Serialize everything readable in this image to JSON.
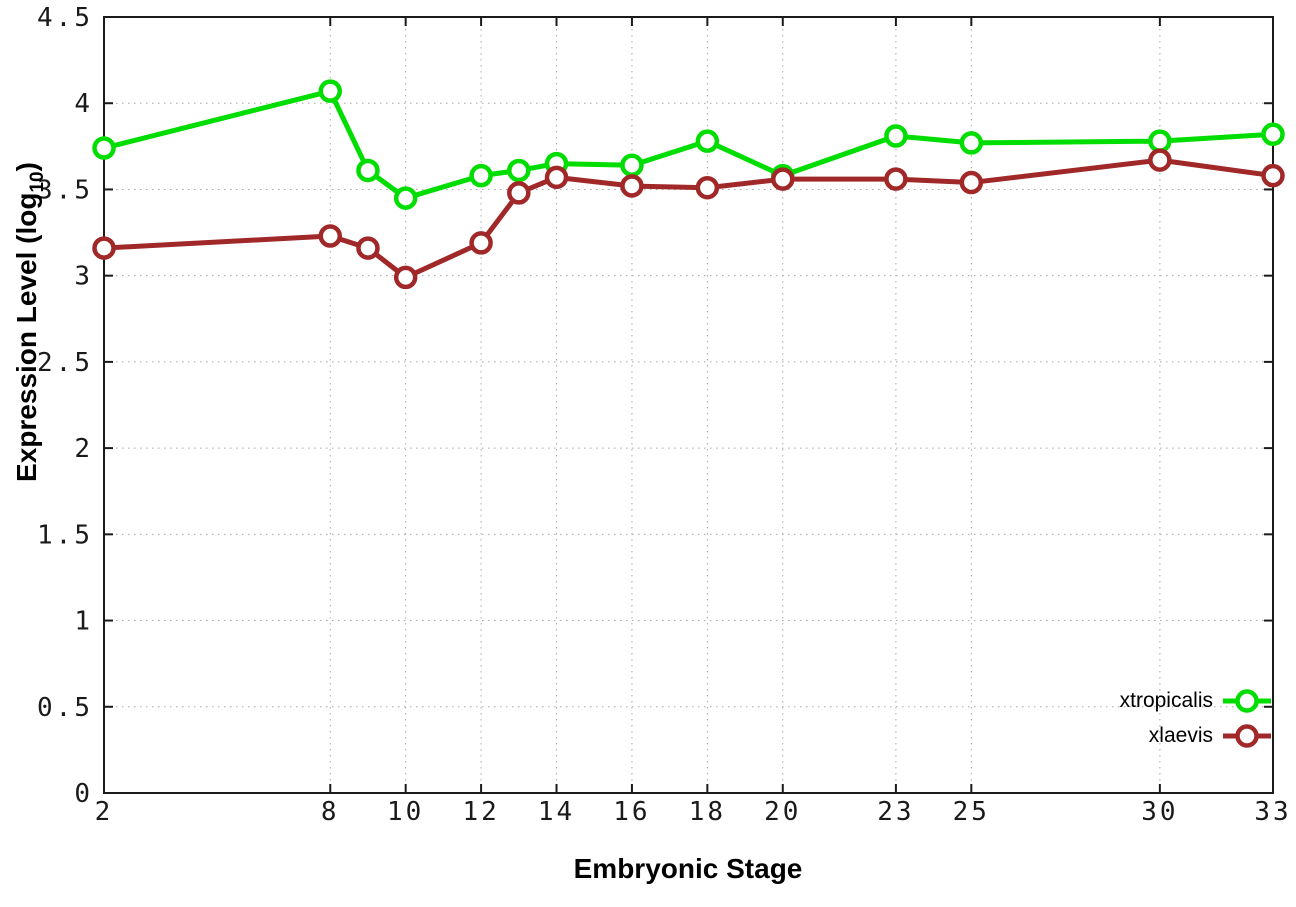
{
  "chart_data": {
    "type": "line",
    "title": "",
    "xlabel": "Embryonic Stage",
    "ylabel": {
      "prefix": "Expression Level (log",
      "sub": "10",
      "suffix": ")"
    },
    "xlim": [
      2,
      33
    ],
    "ylim": [
      0,
      4.5
    ],
    "x_ticks": [
      2,
      8,
      10,
      12,
      14,
      16,
      18,
      20,
      23,
      25,
      30,
      33
    ],
    "y_ticks": [
      0,
      0.5,
      1,
      1.5,
      2,
      2.5,
      3,
      3.5,
      4,
      4.5
    ],
    "grid": true,
    "grid_style": "dotted",
    "legend_position": "bottom-right",
    "marker": "open-circle",
    "x": [
      2,
      8,
      9,
      10,
      12,
      13,
      14,
      16,
      18,
      20,
      23,
      25,
      30,
      33
    ],
    "series": [
      {
        "name": "xtropicalis",
        "color": "#00dd00",
        "values": [
          3.74,
          4.07,
          3.61,
          3.45,
          3.58,
          3.61,
          3.65,
          3.64,
          3.78,
          3.58,
          3.81,
          3.77,
          3.78,
          3.82
        ]
      },
      {
        "name": "xlaevis",
        "color": "#a02828",
        "values": [
          3.16,
          3.23,
          3.16,
          2.99,
          3.19,
          3.48,
          3.57,
          3.52,
          3.51,
          3.56,
          3.56,
          3.54,
          3.67,
          3.58
        ]
      }
    ],
    "colors": {
      "grid": "#a8a8a8",
      "axis": "#1a1a1a",
      "background": "#ffffff"
    }
  }
}
